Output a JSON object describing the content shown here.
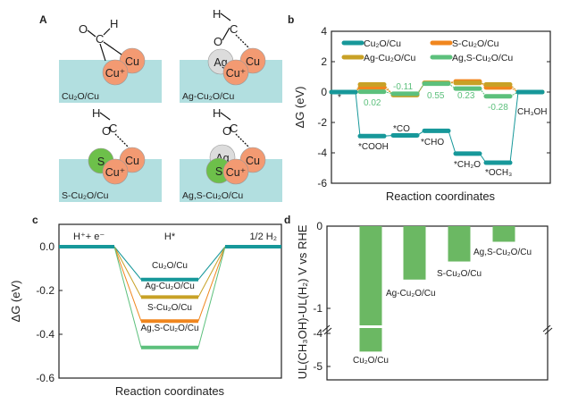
{
  "colors": {
    "cu2o": "#17989a",
    "s": "#f0861e",
    "ag": "#c8a126",
    "ags": "#5cc07c",
    "bar": "#6bb863",
    "substrate": "#b2dfe0",
    "cu_atom": "#f39a72",
    "ag_atom": "#dcdcdc",
    "s_atom": "#6dc04a"
  },
  "panel_a": {
    "label": "A",
    "structures": [
      {
        "name": "Cu2O/Cu",
        "atoms": [
          "Cu",
          "Cu⁺"
        ],
        "adsorbate": [
          "O",
          "C",
          "H"
        ]
      },
      {
        "name": "Ag-Cu2O/Cu",
        "atoms": [
          "Ag",
          "Cu",
          "Cu⁺"
        ],
        "adsorbate": [
          "H",
          "C",
          "O"
        ]
      },
      {
        "name": "S-Cu2O/Cu",
        "atoms": [
          "S",
          "Cu",
          "Cu⁺"
        ],
        "adsorbate": [
          "H",
          "O",
          "C"
        ]
      },
      {
        "name": "Ag,S-Cu2O/Cu",
        "atoms": [
          "Ag",
          "S",
          "Cu",
          "Cu⁺"
        ],
        "adsorbate": [
          "H",
          "O",
          "C"
        ]
      }
    ]
  },
  "chart_data": [
    {
      "panel": "b",
      "type": "line",
      "subtype": "free-energy step diagram",
      "ylabel": "ΔG (eV)",
      "xlabel": "Reaction coordinates",
      "ylim": [
        -6,
        4
      ],
      "yticks": [
        "4",
        "2",
        "0",
        "-2",
        "-4",
        "-6"
      ],
      "states": [
        "*",
        "*COOH",
        "*CO",
        "*CHO",
        "*CH2O",
        "*OCH3",
        "CH3OH"
      ],
      "state_labels": [
        "*",
        "*COOH",
        "*CO",
        "*CHO",
        "*CH₂O",
        "*OCH₃",
        "CH₃OH"
      ],
      "legend": "top-left, two columns",
      "series": [
        {
          "name": "Cu₂O/Cu",
          "key": "cu2o",
          "values": [
            0,
            -2.9,
            -2.85,
            -2.55,
            -4.05,
            -4.65,
            0
          ]
        },
        {
          "name": "S-Cu₂O/Cu",
          "key": "s",
          "values": [
            0,
            0.3,
            -0.15,
            0.6,
            0.7,
            0.3,
            0
          ]
        },
        {
          "name": "Ag-Cu₂O/Cu",
          "key": "ag",
          "values": [
            0,
            0.5,
            -0.2,
            0.6,
            0.6,
            0.5,
            0
          ]
        },
        {
          "name": "Ag,S-Cu₂O/Cu",
          "key": "ags",
          "values": [
            0,
            0.02,
            -0.11,
            0.55,
            0.23,
            -0.28,
            0
          ]
        }
      ],
      "annotations": [
        "0.02",
        "-0.11",
        "0.55",
        "0.23",
        "-0.28"
      ]
    },
    {
      "panel": "c",
      "type": "line",
      "subtype": "free-energy step diagram",
      "ylabel": "ΔG (eV)",
      "xlabel": "Reaction coordinates",
      "ylim": [
        -0.6,
        0.1
      ],
      "yticks": [
        "0.0",
        "-0.2",
        "-0.4",
        "-0.6"
      ],
      "states": [
        "H⁺+ e⁻",
        "H*",
        "1/2 H₂"
      ],
      "series": [
        {
          "name": "Cu₂O/Cu",
          "key": "cu2o",
          "values": [
            0,
            -0.15,
            0
          ]
        },
        {
          "name": "Ag-Cu₂O/Cu",
          "key": "ag",
          "values": [
            0,
            -0.23,
            0
          ]
        },
        {
          "name": "S-Cu₂O/Cu",
          "key": "s",
          "values": [
            0,
            -0.34,
            0
          ]
        },
        {
          "name": "Ag,S-Cu₂O/Cu",
          "key": "ags",
          "values": [
            0,
            -0.46,
            0
          ]
        }
      ]
    },
    {
      "panel": "d",
      "type": "bar",
      "ylabel": "UL(CH₃OH)-UL(H₂) V vs RHE",
      "xlabel": "",
      "axis_break": [
        -1.2,
        -3.8
      ],
      "yticks": [
        "0",
        "-1",
        "-4",
        "-5"
      ],
      "categories": [
        "Cu₂O/Cu",
        "Ag-Cu₂O/Cu",
        "S-Cu₂O/Cu",
        "Ag,S-Cu₂O/Cu"
      ],
      "values": [
        -4.55,
        -0.65,
        -0.43,
        -0.19
      ]
    }
  ]
}
